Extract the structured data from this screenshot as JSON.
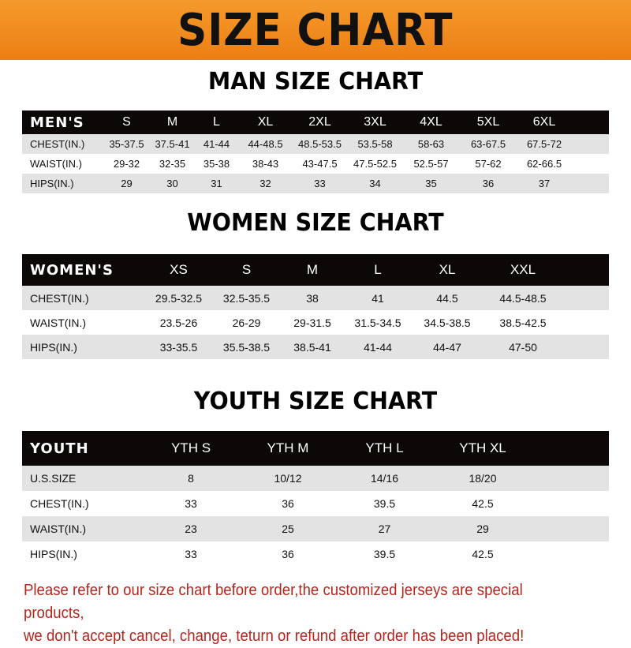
{
  "banner": {
    "title": "SIZE CHART",
    "color": "#ee8519"
  },
  "men": {
    "title": "MAN SIZE CHART",
    "header": [
      "MEN'S",
      "S",
      "M",
      "L",
      "XL",
      "2XL",
      "3XL",
      "4XL",
      "5XL",
      "6XL"
    ],
    "rows": [
      [
        "CHEST(IN.)",
        "35-37.5",
        "37.5-41",
        "41-44",
        "44-48.5",
        "48.5-53.5",
        "53.5-58",
        "58-63",
        "63-67.5",
        "67.5-72"
      ],
      [
        "WAIST(IN.)",
        "29-32",
        "32-35",
        "35-38",
        "38-43",
        "43-47.5",
        "47.5-52.5",
        "52.5-57",
        "57-62",
        "62-66.5"
      ],
      [
        "HIPS(IN.)",
        "29",
        "30",
        "31",
        "32",
        "33",
        "34",
        "35",
        "36",
        "37"
      ]
    ]
  },
  "women": {
    "title": "WOMEN SIZE CHART",
    "header": [
      "WOMEN'S",
      "XS",
      "S",
      "M",
      "L",
      "XL",
      "XXL"
    ],
    "rows": [
      [
        "CHEST(IN.)",
        "29.5-32.5",
        "32.5-35.5",
        "38",
        "41",
        "44.5",
        "44.5-48.5"
      ],
      [
        "WAIST(IN.)",
        "23.5-26",
        "26-29",
        "29-31.5",
        "31.5-34.5",
        "34.5-38.5",
        "38.5-42.5"
      ],
      [
        "HIPS(IN.)",
        "33-35.5",
        "35.5-38.5",
        "38.5-41",
        "41-44",
        "44-47",
        "47-50"
      ]
    ]
  },
  "youth": {
    "title": "YOUTH SIZE CHART",
    "header": [
      "YOUTH",
      "YTH S",
      "YTH M",
      "YTH L",
      "YTH XL"
    ],
    "rows": [
      [
        "U.S.SIZE",
        "8",
        "10/12",
        "14/16",
        "18/20"
      ],
      [
        "CHEST(IN.)",
        "33",
        "36",
        "39.5",
        "42.5"
      ],
      [
        "WAIST(IN.)",
        "23",
        "25",
        "27",
        "29"
      ],
      [
        "HIPS(IN.)",
        "33",
        "36",
        "39.5",
        "42.5"
      ]
    ]
  },
  "note": {
    "line1": "Please refer to our size chart before order,the customized jerseys are special products,",
    "line2": "we don't accept cancel, change, teturn or refund after order has been placed!",
    "color": "#b3261e"
  }
}
